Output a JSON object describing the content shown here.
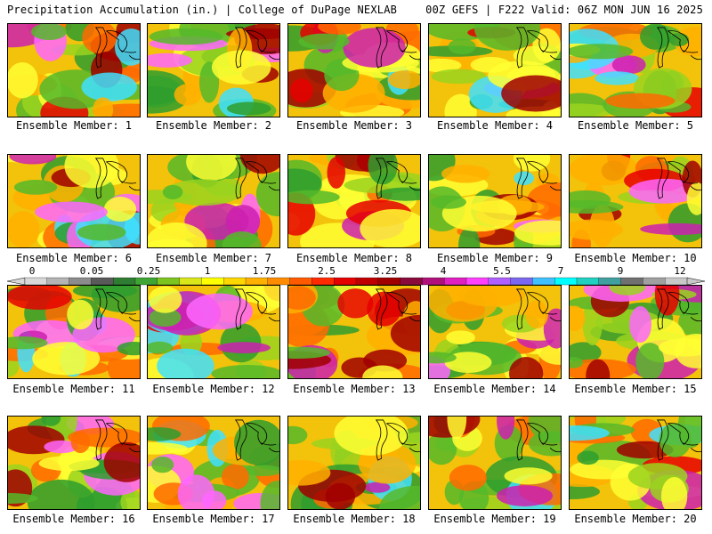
{
  "header": {
    "left": "Precipitation Accumulation (in.) | College of DuPage NEXLAB",
    "right": "00Z GEFS | F222 Valid: 06Z MON JUN 16 2025"
  },
  "members": [
    "Ensemble Member: 1",
    "Ensemble Member: 2",
    "Ensemble Member: 3",
    "Ensemble Member: 4",
    "Ensemble Member: 5",
    "Ensemble Member: 6",
    "Ensemble Member: 7",
    "Ensemble Member: 8",
    "Ensemble Member: 9",
    "Ensemble Member: 10",
    "Ensemble Member: 11",
    "Ensemble Member: 12",
    "Ensemble Member: 13",
    "Ensemble Member: 14",
    "Ensemble Member: 15",
    "Ensemble Member: 16",
    "Ensemble Member: 17",
    "Ensemble Member: 18",
    "Ensemble Member: 19",
    "Ensemble Member: 20"
  ],
  "colorbar": {
    "labels": [
      "0",
      "0.05",
      "0.25",
      "1",
      "1.75",
      "2.5",
      "3.25",
      "4",
      "5.5",
      "7",
      "9",
      "12"
    ],
    "colors": [
      "#d8d8d8",
      "#b4b4b4",
      "#8c8c8c",
      "#5a5a5a",
      "#2e7d32",
      "#3fa535",
      "#7cc41e",
      "#d8e61a",
      "#ffff00",
      "#ffd700",
      "#ffb000",
      "#ff8c00",
      "#ff5a00",
      "#ff2a00",
      "#e60000",
      "#c00000",
      "#a00000",
      "#8b0a3c",
      "#b0107a",
      "#e020c0",
      "#ff40ff",
      "#b060ff",
      "#7b68ee",
      "#40c0ff",
      "#00ffff",
      "#20d0c0",
      "#40a0a0",
      "#707070",
      "#a0a0a0",
      "#c8c8c8"
    ]
  }
}
